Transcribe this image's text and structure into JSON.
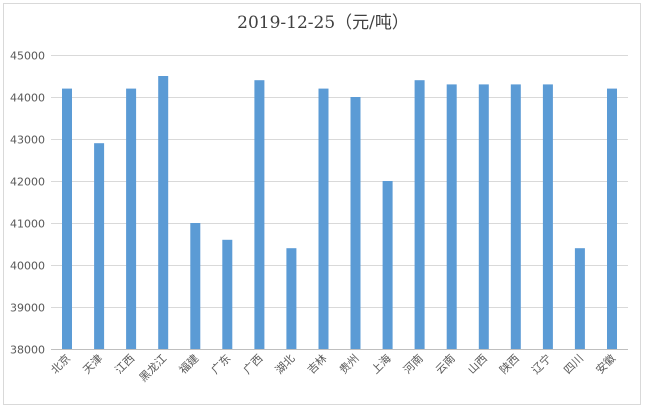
{
  "chart_data": {
    "type": "bar",
    "title": "2019-12-25（元/吨）",
    "categories": [
      "北京",
      "天津",
      "江西",
      "黑龙江",
      "福建",
      "广东",
      "广西",
      "湖北",
      "吉林",
      "贵州",
      "上海",
      "河南",
      "云南",
      "山西",
      "陕西",
      "辽宁",
      "四川",
      "安徽"
    ],
    "values": [
      44200,
      42900,
      44200,
      44500,
      41000,
      40600,
      44400,
      40400,
      44200,
      44000,
      42000,
      44400,
      44300,
      44300,
      44300,
      44300,
      40400,
      44200
    ],
    "ylim": [
      38000,
      45000
    ],
    "yticks": [
      38000,
      39000,
      40000,
      41000,
      42000,
      43000,
      44000,
      45000
    ],
    "grid": true,
    "bar_color": "#5b9bd5",
    "grid_color": "#d9d9d9",
    "xlabel": "",
    "ylabel": ""
  }
}
